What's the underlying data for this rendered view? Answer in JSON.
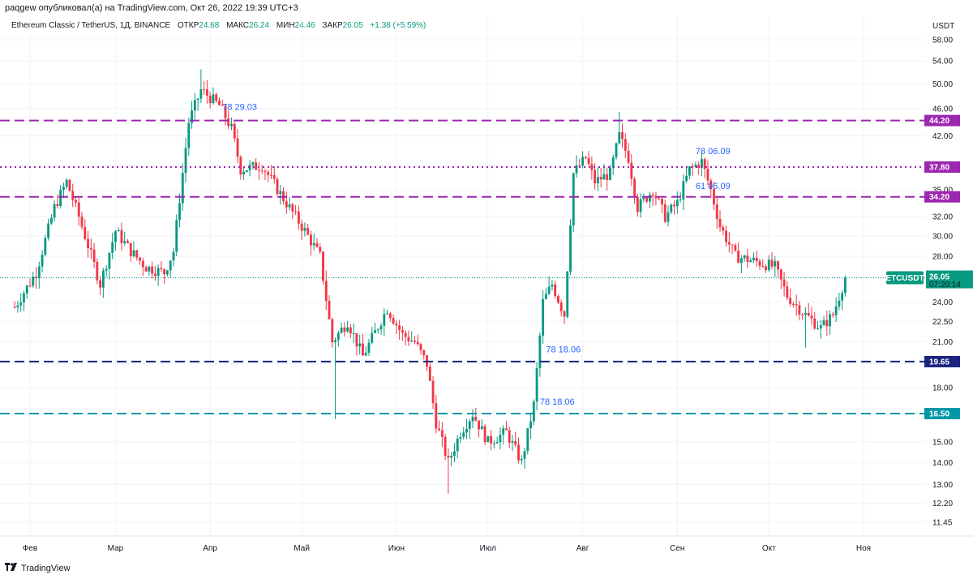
{
  "header": {
    "publisher": "paqgew опубликовал(а) на TradingView.com, Окт 26, 2022 19:39 UTC+3"
  },
  "legend": {
    "symbol": "Ethereum Classic / TetherUS, 1Д, BINANCE",
    "open_key": "ОТКР",
    "open_val": "24.68",
    "high_key": "МАКС",
    "high_val": "26.24",
    "low_key": "МИН",
    "low_val": "24.46",
    "close_key": "ЗАКР",
    "close_val": "26.05",
    "change": "+1.38 (+5.59%)"
  },
  "footer": {
    "brand": "TradingView"
  },
  "colors": {
    "up": "#089981",
    "down": "#f23645",
    "level_magenta": "#9c27b0",
    "level_navy": "#1a237e",
    "level_teal": "#0097a7",
    "annotation": "#2962ff",
    "price_line": "#089981"
  },
  "chart_data": {
    "type": "candlestick",
    "title": "Ethereum Classic / TetherUS, 1Д, BINANCE",
    "y_axis_unit": "USDT",
    "y_scale": "log",
    "ylim": [
      11.0,
      62.0
    ],
    "y_ticks": [
      "58.00",
      "54.00",
      "50.00",
      "46.00",
      "42.00",
      "38.00",
      "35.00",
      "32.00",
      "30.00",
      "28.00",
      "26.00",
      "24.00",
      "22.50",
      "21.00",
      "19.50",
      "18.00",
      "16.50",
      "15.00",
      "14.00",
      "13.00",
      "12.20",
      "11.45"
    ],
    "x_ticks": [
      "Фев",
      "Мар",
      "Апр",
      "Май",
      "Июн",
      "Июл",
      "Авг",
      "Сен",
      "Окт",
      "Ноя"
    ],
    "grid": true,
    "last_price": {
      "symbol": "ETCUSDT",
      "value": 26.05,
      "countdown": "07:20:14"
    },
    "levels": [
      {
        "value": 44.2,
        "label": "44.20",
        "style": "dashed",
        "color": "#9c27b0"
      },
      {
        "value": 37.8,
        "label": "37.80",
        "style": "dotted",
        "color": "#9c27b0"
      },
      {
        "value": 34.2,
        "label": "34.20",
        "style": "dashed",
        "color": "#9c27b0"
      },
      {
        "value": 19.65,
        "label": "19.65",
        "style": "dashed",
        "color": "#1a237e"
      },
      {
        "value": 16.5,
        "label": "16.50",
        "style": "dashed",
        "color": "#0097a7"
      }
    ],
    "annotations": [
      {
        "text": "78 29.03",
        "date": "2022-04-05",
        "price": 46.3
      },
      {
        "text": "78 06.09",
        "date": "2022-09-07",
        "price": 39.9
      },
      {
        "text": "61 06.09",
        "date": "2022-09-07",
        "price": 35.5
      },
      {
        "text": "78 18.06",
        "date": "2022-07-20",
        "price": 20.5
      },
      {
        "text": "78 18.06",
        "date": "2022-07-18",
        "price": 17.2
      }
    ],
    "price_path": [
      [
        "2022-01-27",
        23.6
      ],
      [
        "2022-02-03",
        26.5
      ],
      [
        "2022-02-09",
        33.0
      ],
      [
        "2022-02-13",
        36.0
      ],
      [
        "2022-02-17",
        32.0
      ],
      [
        "2022-02-24",
        25.5
      ],
      [
        "2022-03-01",
        30.5
      ],
      [
        "2022-03-06",
        28.5
      ],
      [
        "2022-03-11",
        27.0
      ],
      [
        "2022-03-17",
        26.5
      ],
      [
        "2022-03-20",
        28.5
      ],
      [
        "2022-03-22",
        34.0
      ],
      [
        "2022-03-25",
        44.0
      ],
      [
        "2022-03-29",
        49.0
      ],
      [
        "2022-04-04",
        46.5
      ],
      [
        "2022-04-08",
        43.0
      ],
      [
        "2022-04-11",
        37.5
      ],
      [
        "2022-04-18",
        38.0
      ],
      [
        "2022-04-25",
        34.0
      ],
      [
        "2022-05-02",
        30.5
      ],
      [
        "2022-05-07",
        28.0
      ],
      [
        "2022-05-11",
        21.0
      ],
      [
        "2022-05-16",
        22.5
      ],
      [
        "2022-05-21",
        20.0
      ],
      [
        "2022-05-29",
        23.5
      ],
      [
        "2022-06-03",
        21.5
      ],
      [
        "2022-06-07",
        21.0
      ],
      [
        "2022-06-11",
        19.5
      ],
      [
        "2022-06-14",
        16.0
      ],
      [
        "2022-06-18",
        14.0
      ],
      [
        "2022-06-22",
        15.5
      ],
      [
        "2022-06-26",
        16.5
      ],
      [
        "2022-07-01",
        15.0
      ],
      [
        "2022-07-07",
        15.5
      ],
      [
        "2022-07-12",
        14.0
      ],
      [
        "2022-07-16",
        17.0
      ],
      [
        "2022-07-19",
        24.0
      ],
      [
        "2022-07-22",
        25.5
      ],
      [
        "2022-07-26",
        23.0
      ],
      [
        "2022-07-29",
        37.0
      ],
      [
        "2022-08-02",
        39.0
      ],
      [
        "2022-08-05",
        36.0
      ],
      [
        "2022-08-10",
        37.0
      ],
      [
        "2022-08-13",
        42.0
      ],
      [
        "2022-08-16",
        39.0
      ],
      [
        "2022-08-19",
        33.0
      ],
      [
        "2022-08-24",
        35.0
      ],
      [
        "2022-08-28",
        32.0
      ],
      [
        "2022-09-01",
        33.5
      ],
      [
        "2022-09-05",
        37.5
      ],
      [
        "2022-09-09",
        38.5
      ],
      [
        "2022-09-12",
        35.0
      ],
      [
        "2022-09-15",
        31.0
      ],
      [
        "2022-09-20",
        28.0
      ],
      [
        "2022-09-27",
        27.5
      ],
      [
        "2022-10-03",
        27.0
      ],
      [
        "2022-10-07",
        24.5
      ],
      [
        "2022-10-13",
        23.0
      ],
      [
        "2022-10-18",
        22.0
      ],
      [
        "2022-10-22",
        23.0
      ],
      [
        "2022-10-26",
        26.05
      ]
    ],
    "notable_extremes": [
      {
        "date": "2022-03-29",
        "high": 52.5
      },
      {
        "date": "2022-05-12",
        "low": 16.2
      },
      {
        "date": "2022-06-18",
        "low": 12.6
      },
      {
        "date": "2022-08-13",
        "high": 45.5
      },
      {
        "date": "2022-10-13",
        "low": 20.6
      }
    ]
  }
}
